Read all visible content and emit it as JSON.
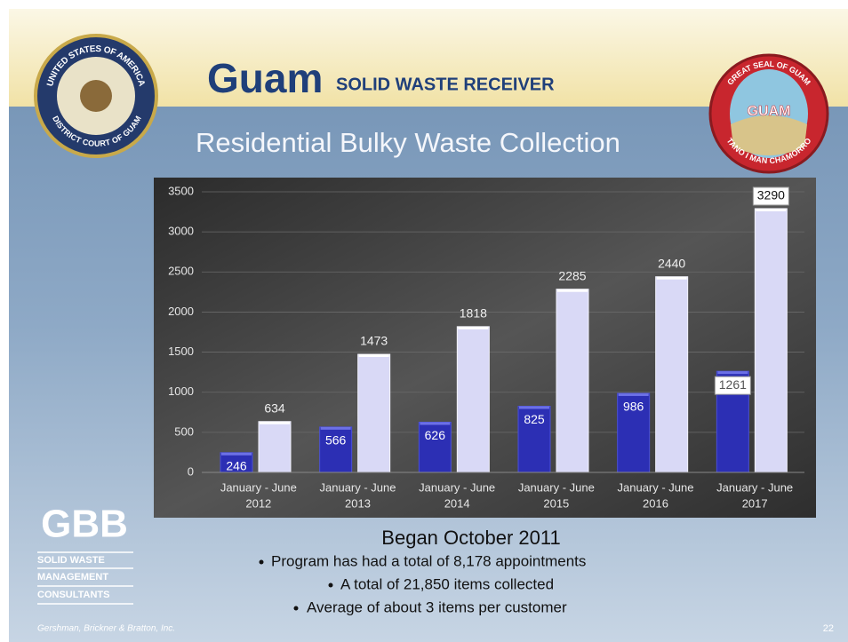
{
  "header": {
    "brand": "Guam",
    "subtitle": "SOLID WASTE RECEIVER",
    "title": "Residential Bulky Waste Collection"
  },
  "seals": {
    "left_top": "UNITED STATES OF AMERICA",
    "left_bottom": "DISTRICT COURT OF GUAM",
    "right_top": "GREAT SEAL OF GUAM",
    "right_center": "GUAM",
    "right_bottom": "TANO I MAN CHAMORRO"
  },
  "chart_data": {
    "type": "bar",
    "categories": [
      [
        "January - June",
        "2012"
      ],
      [
        "January - June",
        "2013"
      ],
      [
        "January - June",
        "2014"
      ],
      [
        "January - June",
        "2015"
      ],
      [
        "January - June",
        "2016"
      ],
      [
        "January - June",
        "2017"
      ]
    ],
    "series": [
      {
        "color": "#2c2fb4",
        "values": [
          246,
          566,
          626,
          825,
          986,
          1261
        ]
      },
      {
        "color": "#d9d9f6",
        "values": [
          634,
          1473,
          1818,
          2285,
          2440,
          3290
        ]
      }
    ],
    "ylim": [
      0,
      3500
    ],
    "yticks": [
      0,
      500,
      1000,
      1500,
      2000,
      2500,
      3000,
      3500
    ],
    "grid": true
  },
  "notes": {
    "heading": "Began October 2011",
    "bullets": [
      "Program has had a total of 8,178 appointments",
      "A total of 21,850 items collected",
      "Average of about 3 items per customer"
    ]
  },
  "logo": {
    "mark": "GBB",
    "lines": [
      "SOLID WASTE",
      "MANAGEMENT",
      "CONSULTANTS"
    ]
  },
  "footer": {
    "company": "Gershman, Brickner & Bratton, Inc.",
    "page": "22"
  }
}
